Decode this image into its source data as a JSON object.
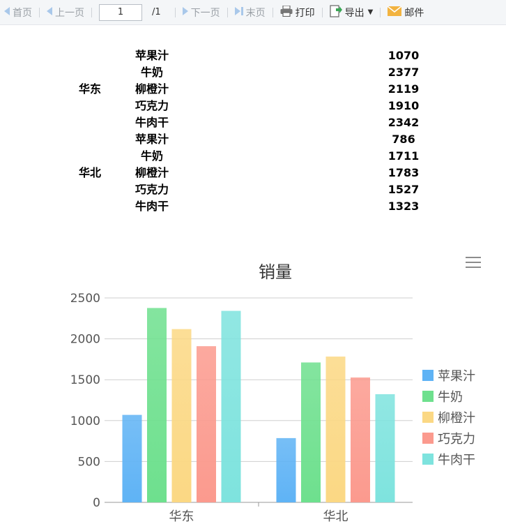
{
  "toolbar": {
    "first": "首页",
    "prev": "上一页",
    "page_value": "1",
    "page_total": "/1",
    "next": "下一页",
    "last": "末页",
    "print": "打印",
    "export": "导出",
    "mail": "邮件"
  },
  "report": {
    "regions": [
      {
        "name": "华东",
        "rows": [
          {
            "product": "苹果汁",
            "value": "1070"
          },
          {
            "product": "牛奶",
            "value": "2377"
          },
          {
            "product": "柳橙汁",
            "value": "2119"
          },
          {
            "product": "巧克力",
            "value": "1910"
          },
          {
            "product": "牛肉干",
            "value": "2342"
          }
        ]
      },
      {
        "name": "华北",
        "rows": [
          {
            "product": "苹果汁",
            "value": "786"
          },
          {
            "product": "牛奶",
            "value": "1711"
          },
          {
            "product": "柳橙汁",
            "value": "1783"
          },
          {
            "product": "巧克力",
            "value": "1527"
          },
          {
            "product": "牛肉干",
            "value": "1323"
          }
        ]
      }
    ]
  },
  "chart_data": {
    "type": "bar",
    "title": "销量",
    "categories": [
      "华东",
      "华北"
    ],
    "series": [
      {
        "name": "苹果汁",
        "values": [
          1070,
          786
        ],
        "color": "#5fb3f5"
      },
      {
        "name": "牛奶",
        "values": [
          2377,
          1711
        ],
        "color": "#6ee08e"
      },
      {
        "name": "柳橙汁",
        "values": [
          2119,
          1783
        ],
        "color": "#fbd884"
      },
      {
        "name": "巧克力",
        "values": [
          1910,
          1527
        ],
        "color": "#fb9a8e"
      },
      {
        "name": "牛肉干",
        "values": [
          2342,
          1323
        ],
        "color": "#7ee3de"
      }
    ],
    "yticks": [
      0,
      500,
      1000,
      1500,
      2000,
      2500
    ],
    "ylim": [
      0,
      2500
    ],
    "grid": true,
    "legend": "right"
  }
}
